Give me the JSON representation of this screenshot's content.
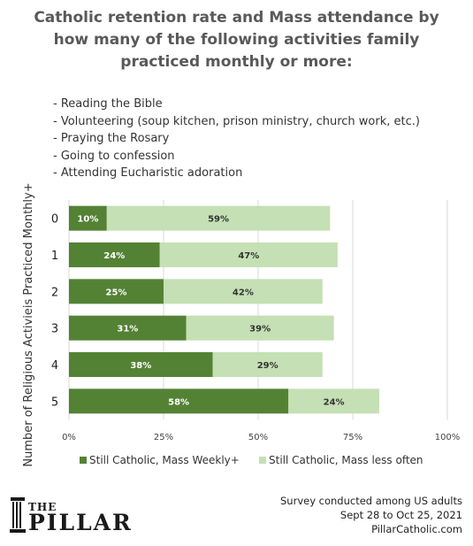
{
  "title_lines": [
    "Catholic retention rate and Mass attendance by",
    "how many of the following activities family",
    "practiced monthly or more:"
  ],
  "activities": [
    "- Reading the Bible",
    "- Volunteering (soup kitchen, prison ministry, church work, etc.)",
    "- Praying the Rosary",
    "- Going to confession",
    "- Attending  Eucharistic adoration"
  ],
  "footer": {
    "line1": "Survey conducted among US adults",
    "line2": "Sept 28 to Oct 25, 2021",
    "line3": "PillarCatholic.com"
  },
  "logo": {
    "the": "THE",
    "name": "PILLAR"
  },
  "colors": {
    "dark_green": "#548235",
    "light_green": "#c5e0b4",
    "grid": "#d9d9d9",
    "title": "#595959"
  },
  "chart_data": {
    "type": "bar",
    "orientation": "horizontal",
    "stacked": true,
    "ylabel": "Number of Religious Activieis Practiced Monthly+",
    "xlabel": "",
    "categories": [
      "0",
      "1",
      "2",
      "3",
      "4",
      "5"
    ],
    "series": [
      {
        "name": "Still Catholic, Mass Weekly+",
        "color": "#548235",
        "values": [
          10,
          24,
          25,
          31,
          38,
          58
        ],
        "labels": [
          "10%",
          "24%",
          "25%",
          "31%",
          "38%",
          "58%"
        ]
      },
      {
        "name": "Still Catholic, Mass less often",
        "color": "#c5e0b4",
        "values": [
          59,
          47,
          42,
          39,
          29,
          24
        ],
        "labels": [
          "59%",
          "47%",
          "42%",
          "39%",
          "29%",
          "24%"
        ]
      }
    ],
    "xlim": [
      0,
      100
    ],
    "x_ticks": [
      0,
      25,
      50,
      75,
      100
    ],
    "x_tick_labels": [
      "0%",
      "25%",
      "50%",
      "75%",
      "100%"
    ],
    "grid": true,
    "legend_position": "bottom"
  }
}
